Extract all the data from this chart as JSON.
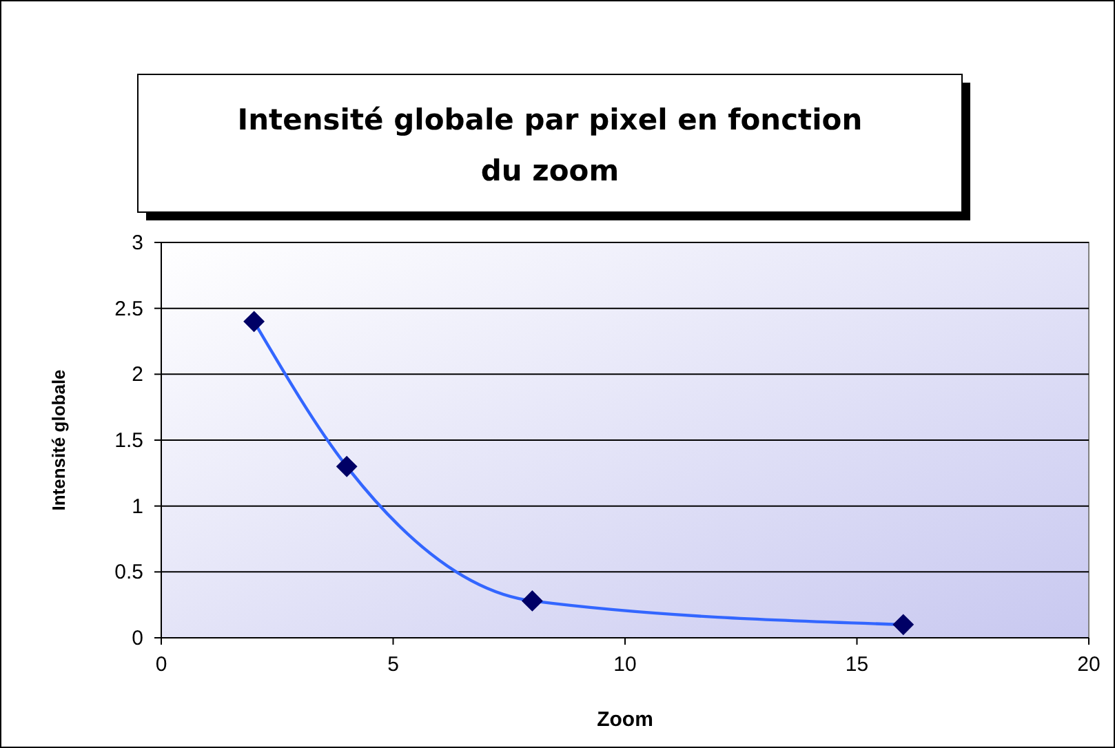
{
  "chart_data": {
    "type": "line",
    "title": "Intensité globale par pixel en fonction du zoom",
    "xlabel": "Zoom",
    "ylabel": "Intensité globale",
    "x": [
      2,
      4,
      8,
      16
    ],
    "series": [
      {
        "color": "#3366ff",
        "values": [
          2.4,
          1.3,
          0.28,
          0.1
        ]
      }
    ],
    "xlim": [
      0,
      20
    ],
    "xticks": [
      0,
      5,
      10,
      15,
      20
    ],
    "ylim": [
      0,
      3
    ],
    "yticks": [
      0,
      0.5,
      1,
      1.5,
      2,
      2.5,
      3
    ],
    "grid": "y",
    "marker": "diamond",
    "line_style": "solid"
  }
}
